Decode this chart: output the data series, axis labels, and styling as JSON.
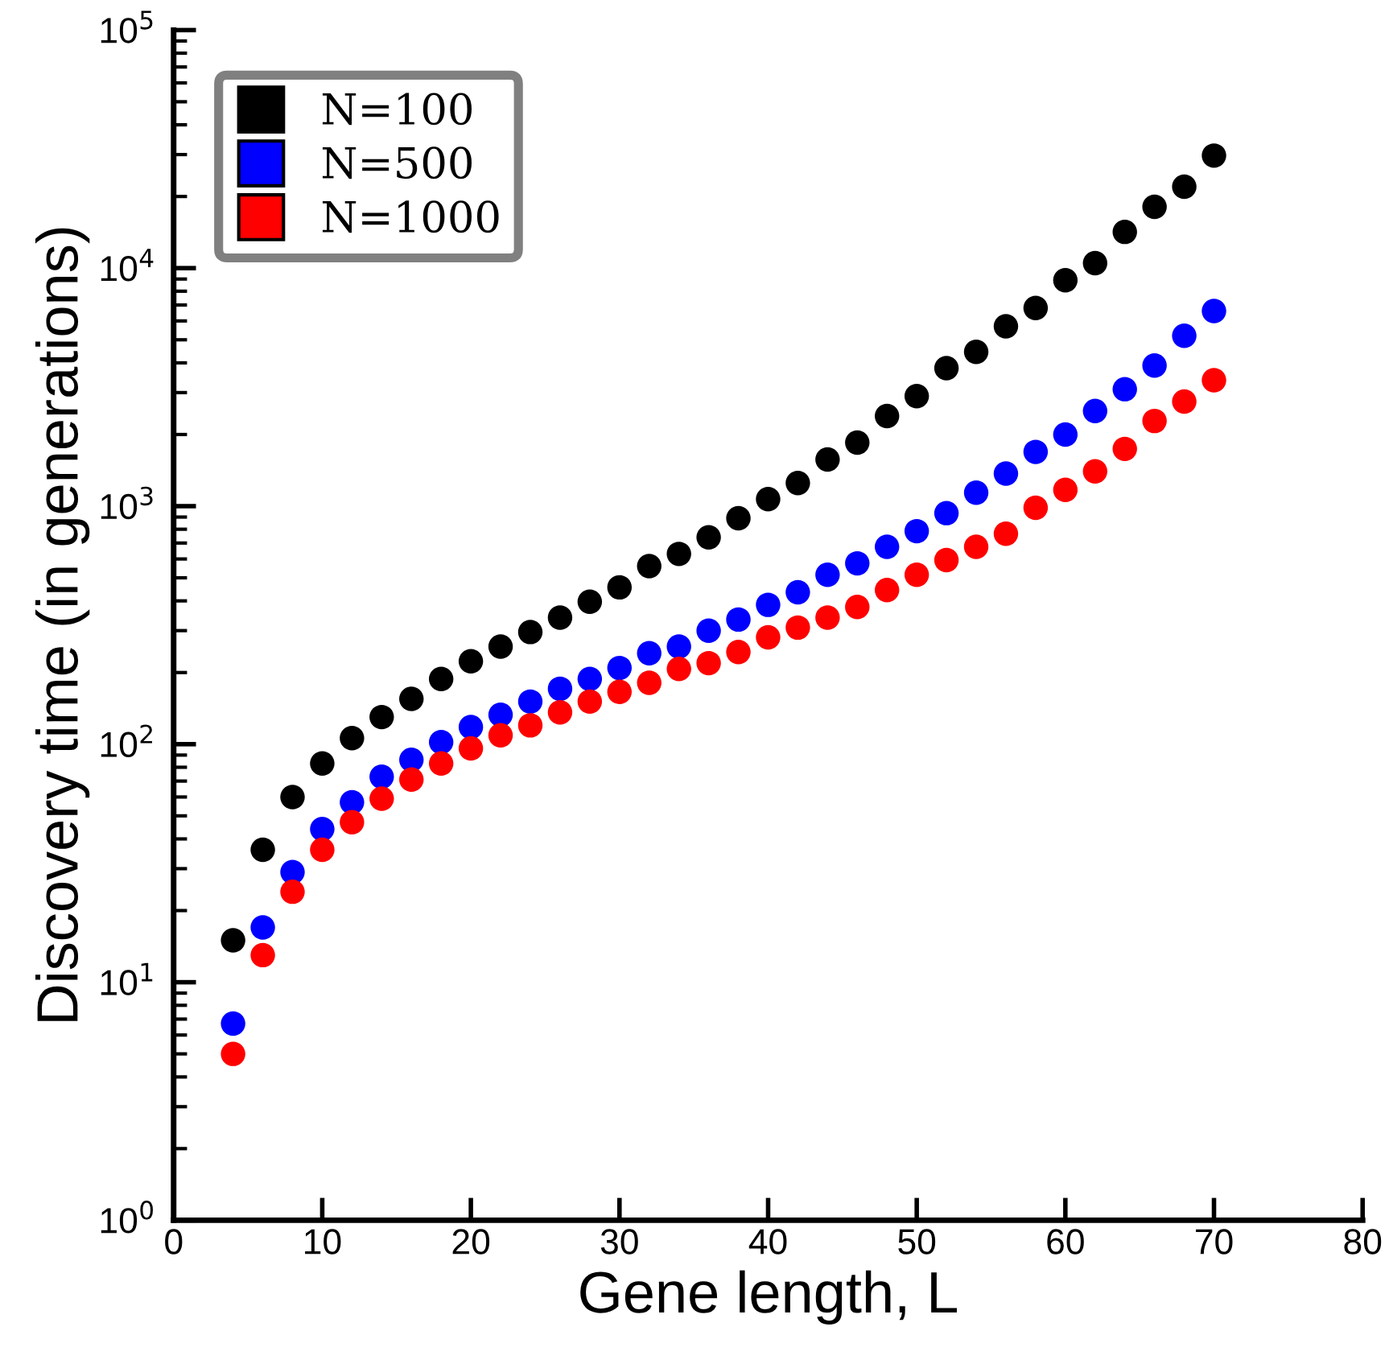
{
  "chart_data": {
    "type": "scatter",
    "xlabel": "Gene length, L",
    "ylabel": "Discovery time (in generations)",
    "x": [
      4,
      6,
      8,
      10,
      12,
      14,
      16,
      18,
      20,
      22,
      24,
      26,
      28,
      30,
      32,
      34,
      36,
      38,
      40,
      42,
      44,
      46,
      48,
      50,
      52,
      54,
      56,
      58,
      60,
      62,
      64,
      66,
      68,
      70
    ],
    "series": [
      {
        "name": "N=100",
        "color": "#000000",
        "values": [
          15,
          36,
          60,
          83,
          106,
          130,
          155,
          188,
          223,
          257,
          296,
          340,
          397,
          456,
          560,
          630,
          740,
          890,
          1070,
          1250,
          1570,
          1850,
          2390,
          2900,
          3800,
          4450,
          5700,
          6800,
          8900,
          10500,
          14200,
          18100,
          22000,
          29700
        ]
      },
      {
        "name": "N=500",
        "color": "#0000ff",
        "values": [
          6.7,
          17,
          29,
          44,
          57,
          73,
          86,
          102,
          118,
          133,
          151,
          171,
          188,
          209,
          241,
          257,
          300,
          334,
          385,
          435,
          515,
          575,
          675,
          785,
          935,
          1140,
          1370,
          1690,
          2000,
          2510,
          3100,
          3900,
          5200,
          6600
        ]
      },
      {
        "name": "N=1000",
        "color": "#ff0000",
        "values": [
          5.0,
          13,
          24,
          36,
          47,
          59,
          71,
          83,
          96,
          109,
          120,
          136,
          151,
          166,
          181,
          207,
          219,
          244,
          281,
          309,
          340,
          377,
          444,
          515,
          594,
          675,
          766,
          984,
          1170,
          1400,
          1740,
          2280,
          2750,
          3380
        ]
      }
    ],
    "log": "y",
    "marker": "circle",
    "grid": false,
    "legend": "top left",
    "xlim": [
      0,
      80
    ],
    "xticks": [
      0,
      10,
      20,
      30,
      40,
      50,
      60,
      70,
      80
    ],
    "ylim": [
      1,
      100000
    ],
    "yticks": [
      {
        "value": 1,
        "label": "10$^{0}$"
      },
      {
        "value": 10,
        "label": "10$^{1}$"
      },
      {
        "value": 100,
        "label": "10$^{2}$"
      },
      {
        "value": 1000,
        "label": "10$^{3}$"
      },
      {
        "value": 10000,
        "label": "10$^{4}$"
      },
      {
        "value": 100000,
        "label": "10$^{5}$"
      }
    ]
  }
}
